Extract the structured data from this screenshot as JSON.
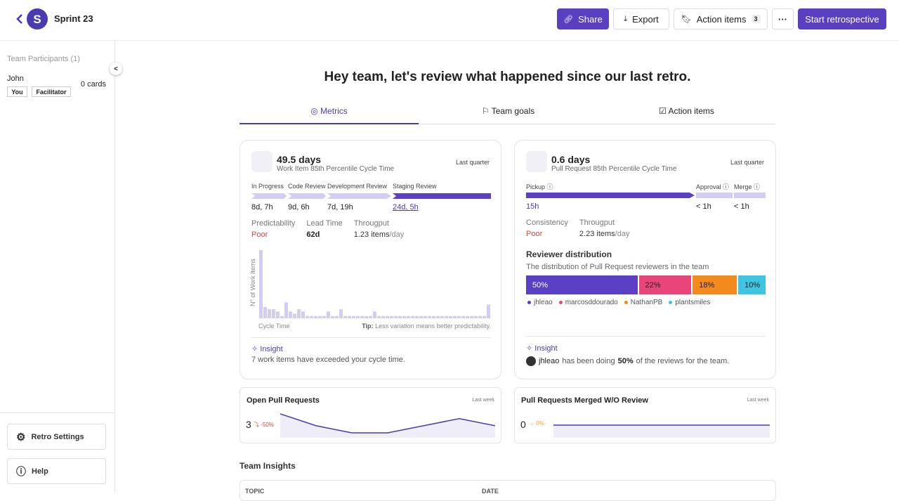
{
  "header": {
    "title": "Sprint 23",
    "share": "Share",
    "export": "Export",
    "action_items": "Action items",
    "action_items_count": 3,
    "more": "···",
    "start": "Start retrospective"
  },
  "sidebar": {
    "heading": "Team Participants (1)",
    "participants": [
      {
        "name": "John",
        "tags": [
          "You",
          "Facilitator"
        ],
        "cards": "0 cards"
      }
    ],
    "settings": "Retro Settings",
    "help": "Help"
  },
  "main": {
    "heading": "Hey team, let's review what happened since our last retro.",
    "tabs": [
      "Metrics",
      "Team goals",
      "Action items"
    ]
  },
  "work_item_card": {
    "value": "49.5 days",
    "subtitle": "Work Item 85th Percentile Cycle Time",
    "period": "Last quarter",
    "stages": [
      {
        "name": "In Progress",
        "value": "8d, 7h"
      },
      {
        "name": "Code Review",
        "value": "9d, 6h"
      },
      {
        "name": "Development Review",
        "value": "7d, 19h"
      },
      {
        "name": "Staging Review",
        "value": "24d, 5h"
      }
    ],
    "metrics": [
      {
        "label": "Predictability",
        "value": "Poor"
      },
      {
        "label": "Lead Time",
        "value": "62d"
      },
      {
        "label": "Througput",
        "value": "1.23 items",
        "unit": "/day"
      }
    ],
    "chart_data": {
      "type": "histogram",
      "y_label": "N° of Work Items",
      "x_label": "Cycle Time",
      "color": "#d4ccf5",
      "values": [
        30,
        5,
        4,
        4,
        3,
        1,
        7,
        3,
        2,
        4,
        3,
        1,
        1,
        1,
        1,
        1,
        3,
        1,
        1,
        4,
        1,
        1,
        1,
        1,
        1,
        1,
        1,
        3,
        1,
        1,
        1,
        1,
        1,
        1,
        1,
        1,
        1,
        1,
        1,
        1,
        1,
        1,
        1,
        1,
        1,
        1,
        1,
        1,
        1,
        1,
        1,
        1,
        1,
        1,
        6
      ]
    },
    "tip_label": "Tip:",
    "tip": "Less variation means better predictability.",
    "insight_label": "Insight",
    "insight": "7 work items have exceeded your cycle time."
  },
  "pull_request_card": {
    "value": "0.6 days",
    "subtitle": "Pull Request 85th Percentile Cycle Time",
    "period": "Last quarter",
    "stages": [
      {
        "name": "Pickup",
        "value": "15h"
      },
      {
        "name": "Approval",
        "value": "< 1h"
      },
      {
        "name": "Merge",
        "value": "< 1h"
      }
    ],
    "metrics": [
      {
        "label": "Consistency",
        "value": "Poor"
      },
      {
        "label": "Througput",
        "value": "2.23 items",
        "unit": "/day"
      }
    ],
    "distribution_title": "Reviewer distribution",
    "distribution_description": "The distribution of Pull Request reviewers in the team",
    "chart_data": {
      "type": "stacked-bar",
      "series": [
        {
          "name": "jhleao",
          "color": "#5b3fc4",
          "values": [
            50
          ],
          "value_labels": [
            "50%"
          ]
        },
        {
          "name": "marcosddourado",
          "color": "#e8457a",
          "values": [
            22
          ],
          "value_labels": [
            "22%"
          ]
        },
        {
          "name": "NathanPB",
          "color": "#f28a1e",
          "values": [
            18
          ],
          "value_labels": [
            "18%"
          ]
        },
        {
          "name": "plantsmiles",
          "color": "#3ec6e0",
          "values": [
            10
          ],
          "value_labels": [
            "10%"
          ]
        }
      ]
    },
    "insight_label": "Insight",
    "insight_user": "jhleao",
    "insight_pre": "has been doing",
    "insight_share": "50%",
    "insight_post": "of the reviews for the team."
  },
  "open_prs": {
    "title": "Open Pull Requests",
    "period": "Last week",
    "value": 3,
    "change": "-50%",
    "chart_data": {
      "type": "area",
      "color": "#4b3bb0",
      "values": [
        6,
        3.5,
        2,
        2,
        3.5,
        5,
        3.5
      ]
    }
  },
  "merged_without_review": {
    "title": "Pull Requests Merged W/O Review",
    "period": "Last week",
    "value": 0,
    "change": "0%",
    "chart_data": {
      "type": "area",
      "color": "#4b3bb0",
      "values": [
        0,
        0,
        0,
        0,
        0,
        0,
        0
      ]
    }
  },
  "team_insights": {
    "title": "Team Insights",
    "columns": [
      "TOPIC",
      "DATE"
    ]
  }
}
